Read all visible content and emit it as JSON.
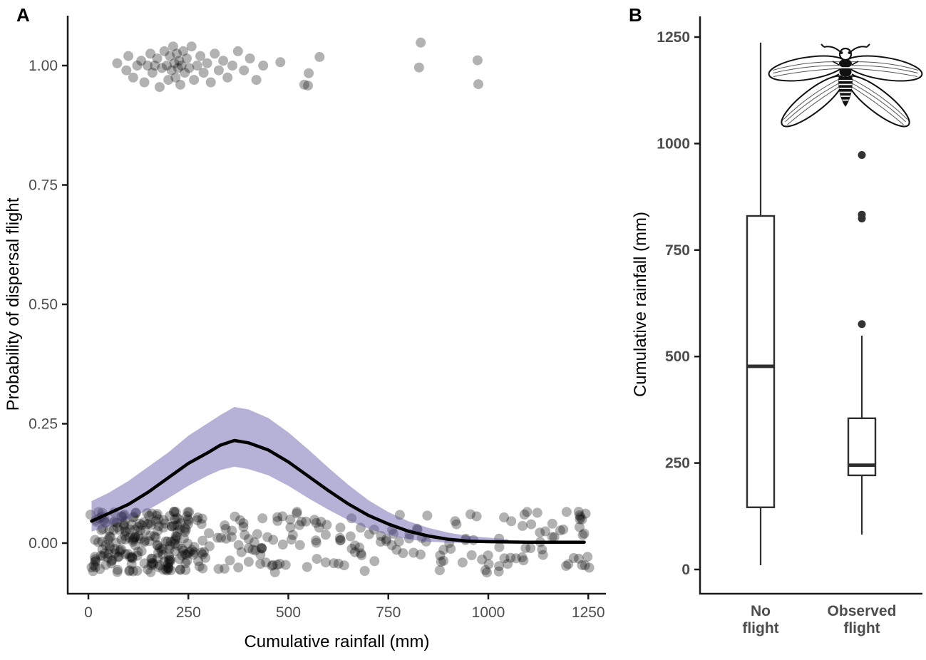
{
  "figure": {
    "panel_a_label": "A",
    "panel_b_label": "B",
    "background": "#ffffff"
  },
  "colors": {
    "axis_line": "#1a1a1a",
    "tick_label": "#4d4d4d",
    "axis_title": "#000000",
    "point": "#000000",
    "point_opacity": 0.3,
    "ribbon": "#6459a8",
    "ribbon_opacity": 0.47,
    "curve": "#000000",
    "box_stroke": "#2e2e2e",
    "box_fill": "#ffffff",
    "outlier": "#333333",
    "insect_outline": "#111111"
  },
  "chart_data": [
    {
      "id": "panel_a",
      "type": "scatter",
      "title": "",
      "xlabel": "Cumulative rainfall (mm)",
      "ylabel": "Probability of dispersal flight",
      "xlim": [
        -52,
        1295
      ],
      "ylim": [
        -0.105,
        1.105
      ],
      "xticks": [
        0,
        250,
        500,
        750,
        1000,
        1250
      ],
      "yticks": [
        0,
        0.25,
        0.5,
        0.75,
        1
      ],
      "ytick_labels": [
        "0.00",
        "0.25",
        "0.50",
        "0.75",
        "1.00"
      ],
      "grid": false,
      "legend": "none",
      "fit_curve": {
        "x": [
          8,
          50,
          100,
          150,
          200,
          250,
          300,
          330,
          365,
          400,
          450,
          500,
          550,
          600,
          650,
          700,
          750,
          800,
          850,
          900,
          950,
          1000,
          1100,
          1240
        ],
        "y": [
          0.046,
          0.062,
          0.081,
          0.107,
          0.137,
          0.167,
          0.19,
          0.205,
          0.215,
          0.21,
          0.195,
          0.17,
          0.14,
          0.11,
          0.082,
          0.058,
          0.04,
          0.025,
          0.015,
          0.008,
          0.004,
          0.003,
          0.002,
          0.002
        ]
      },
      "confidence_ribbon": {
        "x": [
          8,
          50,
          100,
          150,
          200,
          250,
          300,
          330,
          365,
          400,
          450,
          500,
          550,
          600,
          650,
          700,
          750,
          800,
          850,
          900,
          950,
          1050
        ],
        "upper": [
          0.088,
          0.105,
          0.13,
          0.16,
          0.19,
          0.225,
          0.252,
          0.268,
          0.285,
          0.28,
          0.262,
          0.232,
          0.196,
          0.158,
          0.122,
          0.09,
          0.065,
          0.046,
          0.032,
          0.022,
          0.015,
          0.008
        ],
        "lower": [
          0.024,
          0.035,
          0.05,
          0.07,
          0.094,
          0.12,
          0.142,
          0.153,
          0.16,
          0.155,
          0.142,
          0.12,
          0.094,
          0.07,
          0.048,
          0.03,
          0.017,
          0.008,
          0.003,
          0.001,
          0.0,
          0.0
        ]
      },
      "points_flight_observed": [
        [
          72,
          1.005
        ],
        [
          95,
          0.99
        ],
        [
          100,
          1.02
        ],
        [
          112,
          0.975
        ],
        [
          122,
          1.0
        ],
        [
          132,
          1.01
        ],
        [
          140,
          0.965
        ],
        [
          148,
          1.0
        ],
        [
          155,
          1.025
        ],
        [
          160,
          0.985
        ],
        [
          166,
          1.0
        ],
        [
          172,
          1.015
        ],
        [
          178,
          0.955
        ],
        [
          184,
          0.995
        ],
        [
          190,
          1.03
        ],
        [
          196,
          1.0
        ],
        [
          200,
          0.97
        ],
        [
          204,
          1.02
        ],
        [
          208,
          0.99
        ],
        [
          212,
          1.04
        ],
        [
          215,
          1.005
        ],
        [
          218,
          0.975
        ],
        [
          221,
          1.025
        ],
        [
          224,
          0.995
        ],
        [
          227,
          1.01
        ],
        [
          230,
          0.96
        ],
        [
          233,
          1.0
        ],
        [
          237,
          1.03
        ],
        [
          241,
          0.985
        ],
        [
          246,
          1.015
        ],
        [
          252,
          0.995
        ],
        [
          258,
          1.04
        ],
        [
          264,
          0.97
        ],
        [
          272,
          1.0
        ],
        [
          280,
          1.02
        ],
        [
          288,
          0.985
        ],
        [
          297,
          1.005
        ],
        [
          306,
          0.965
        ],
        [
          316,
          1.025
        ],
        [
          326,
          0.99
        ],
        [
          337,
          1.01
        ],
        [
          348,
          0.975
        ],
        [
          360,
          1.0
        ],
        [
          374,
          1.03
        ],
        [
          389,
          0.99
        ],
        [
          404,
          1.015
        ],
        [
          420,
          0.97
        ],
        [
          437,
          1.0
        ],
        [
          480,
          1.007
        ],
        [
          540,
          0.96
        ],
        [
          549,
          0.958
        ],
        [
          551,
          0.984
        ],
        [
          578,
          1.018
        ],
        [
          827,
          0.996
        ],
        [
          831,
          1.048
        ],
        [
          973,
          1.011
        ],
        [
          975,
          0.961
        ]
      ],
      "points_no_flight": {
        "y_center": 0,
        "y_jitter_range": [
          -0.062,
          0.066
        ],
        "x_jitter": 14,
        "seed": 42,
        "columns": [
          [
            15,
            12
          ],
          [
            30,
            10
          ],
          [
            45,
            14
          ],
          [
            60,
            9
          ],
          [
            75,
            13
          ],
          [
            90,
            16
          ],
          [
            105,
            11
          ],
          [
            120,
            14
          ],
          [
            135,
            9
          ],
          [
            150,
            12
          ],
          [
            165,
            15
          ],
          [
            180,
            10
          ],
          [
            195,
            13
          ],
          [
            210,
            18
          ],
          [
            225,
            12
          ],
          [
            240,
            16
          ],
          [
            255,
            9
          ],
          [
            275,
            8
          ],
          [
            295,
            7
          ],
          [
            330,
            6
          ],
          [
            355,
            5
          ],
          [
            380,
            7
          ],
          [
            405,
            6
          ],
          [
            430,
            8
          ],
          [
            455,
            5
          ],
          [
            480,
            7
          ],
          [
            510,
            6
          ],
          [
            540,
            5
          ],
          [
            570,
            7
          ],
          [
            600,
            4
          ],
          [
            630,
            6
          ],
          [
            660,
            5
          ],
          [
            690,
            6
          ],
          [
            720,
            4
          ],
          [
            750,
            5
          ],
          [
            780,
            4
          ],
          [
            810,
            5
          ],
          [
            840,
            4
          ],
          [
            870,
            3
          ],
          [
            900,
            4
          ],
          [
            930,
            5
          ],
          [
            960,
            4
          ],
          [
            990,
            5
          ],
          [
            1020,
            4
          ],
          [
            1050,
            5
          ],
          [
            1080,
            6
          ],
          [
            1110,
            4
          ],
          [
            1140,
            5
          ],
          [
            1170,
            4
          ],
          [
            1200,
            5
          ],
          [
            1240,
            14
          ]
        ]
      }
    },
    {
      "id": "panel_b",
      "type": "boxplot",
      "title": "",
      "xlabel": "",
      "ylabel": "Cumulative rainfall (mm)",
      "ylim": [
        -55,
        1300
      ],
      "yticks": [
        0,
        250,
        500,
        750,
        1000,
        1250
      ],
      "grid": false,
      "icon": "winged-termite-illustration",
      "categories": [
        {
          "label_lines": [
            "No",
            "flight"
          ],
          "whisker_low": 10,
          "q1": 146,
          "median": 477,
          "q3": 830,
          "whisker_high": 1237,
          "outliers": []
        },
        {
          "label_lines": [
            "Observed",
            "flight"
          ],
          "whisker_low": 82,
          "q1": 221,
          "median": 245,
          "q3": 355,
          "whisker_high": 549,
          "outliers": [
            576,
            824,
            833,
            973
          ]
        }
      ]
    }
  ]
}
